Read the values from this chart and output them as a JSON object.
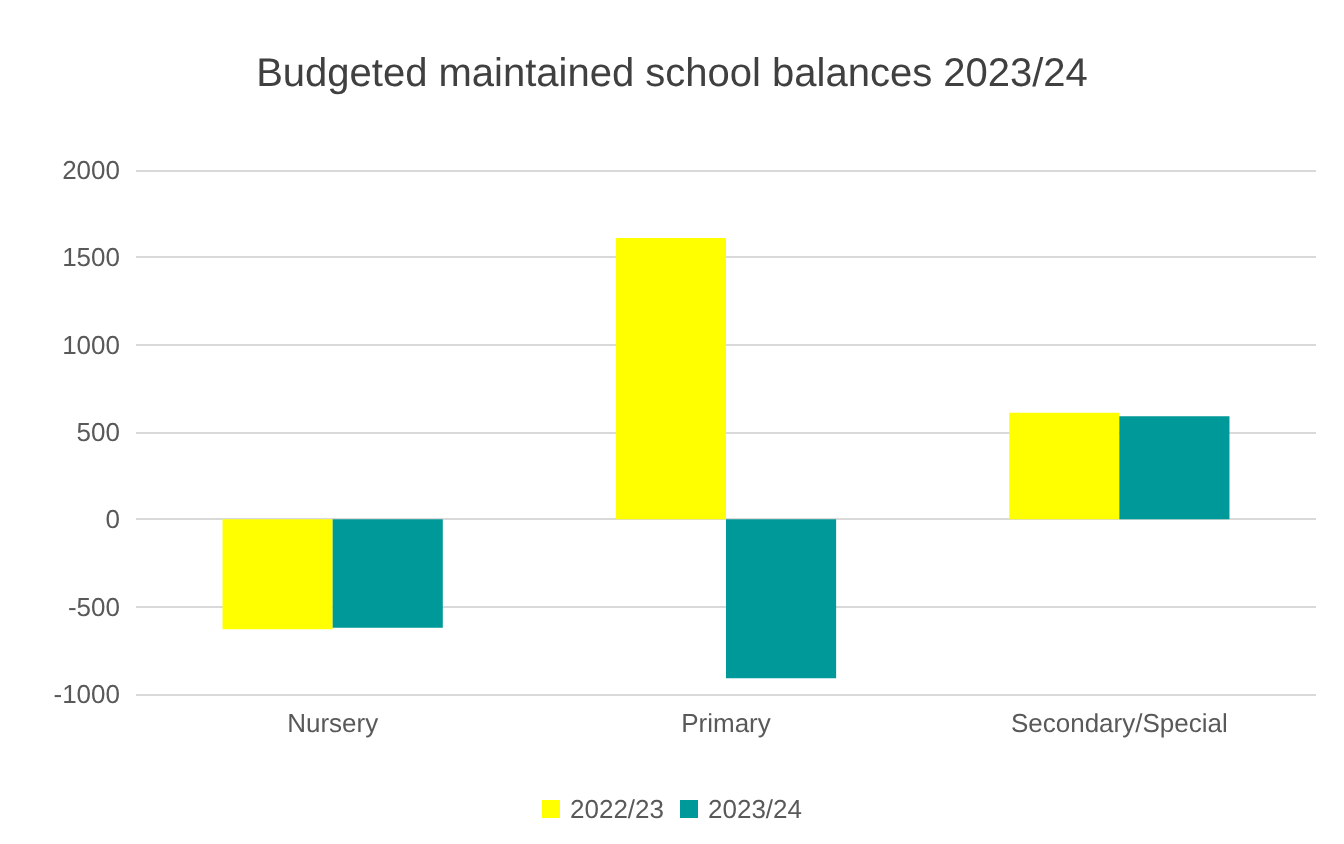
{
  "chart_data": {
    "type": "bar",
    "title": "Budgeted maintained school balances 2023/24",
    "categories": [
      "Nursery",
      "Primary",
      "Secondary/Special"
    ],
    "series": [
      {
        "name": "2022/23",
        "color": "#ffff00",
        "values": [
          -630,
          1610,
          610
        ]
      },
      {
        "name": "2023/24",
        "color": "#009999",
        "values": [
          -620,
          -910,
          590
        ]
      }
    ],
    "ylim": [
      -1000,
      2000
    ],
    "yticks": [
      -1000,
      -500,
      0,
      500,
      1000,
      1500,
      2000
    ],
    "grid": "y",
    "legend": "bottom"
  }
}
